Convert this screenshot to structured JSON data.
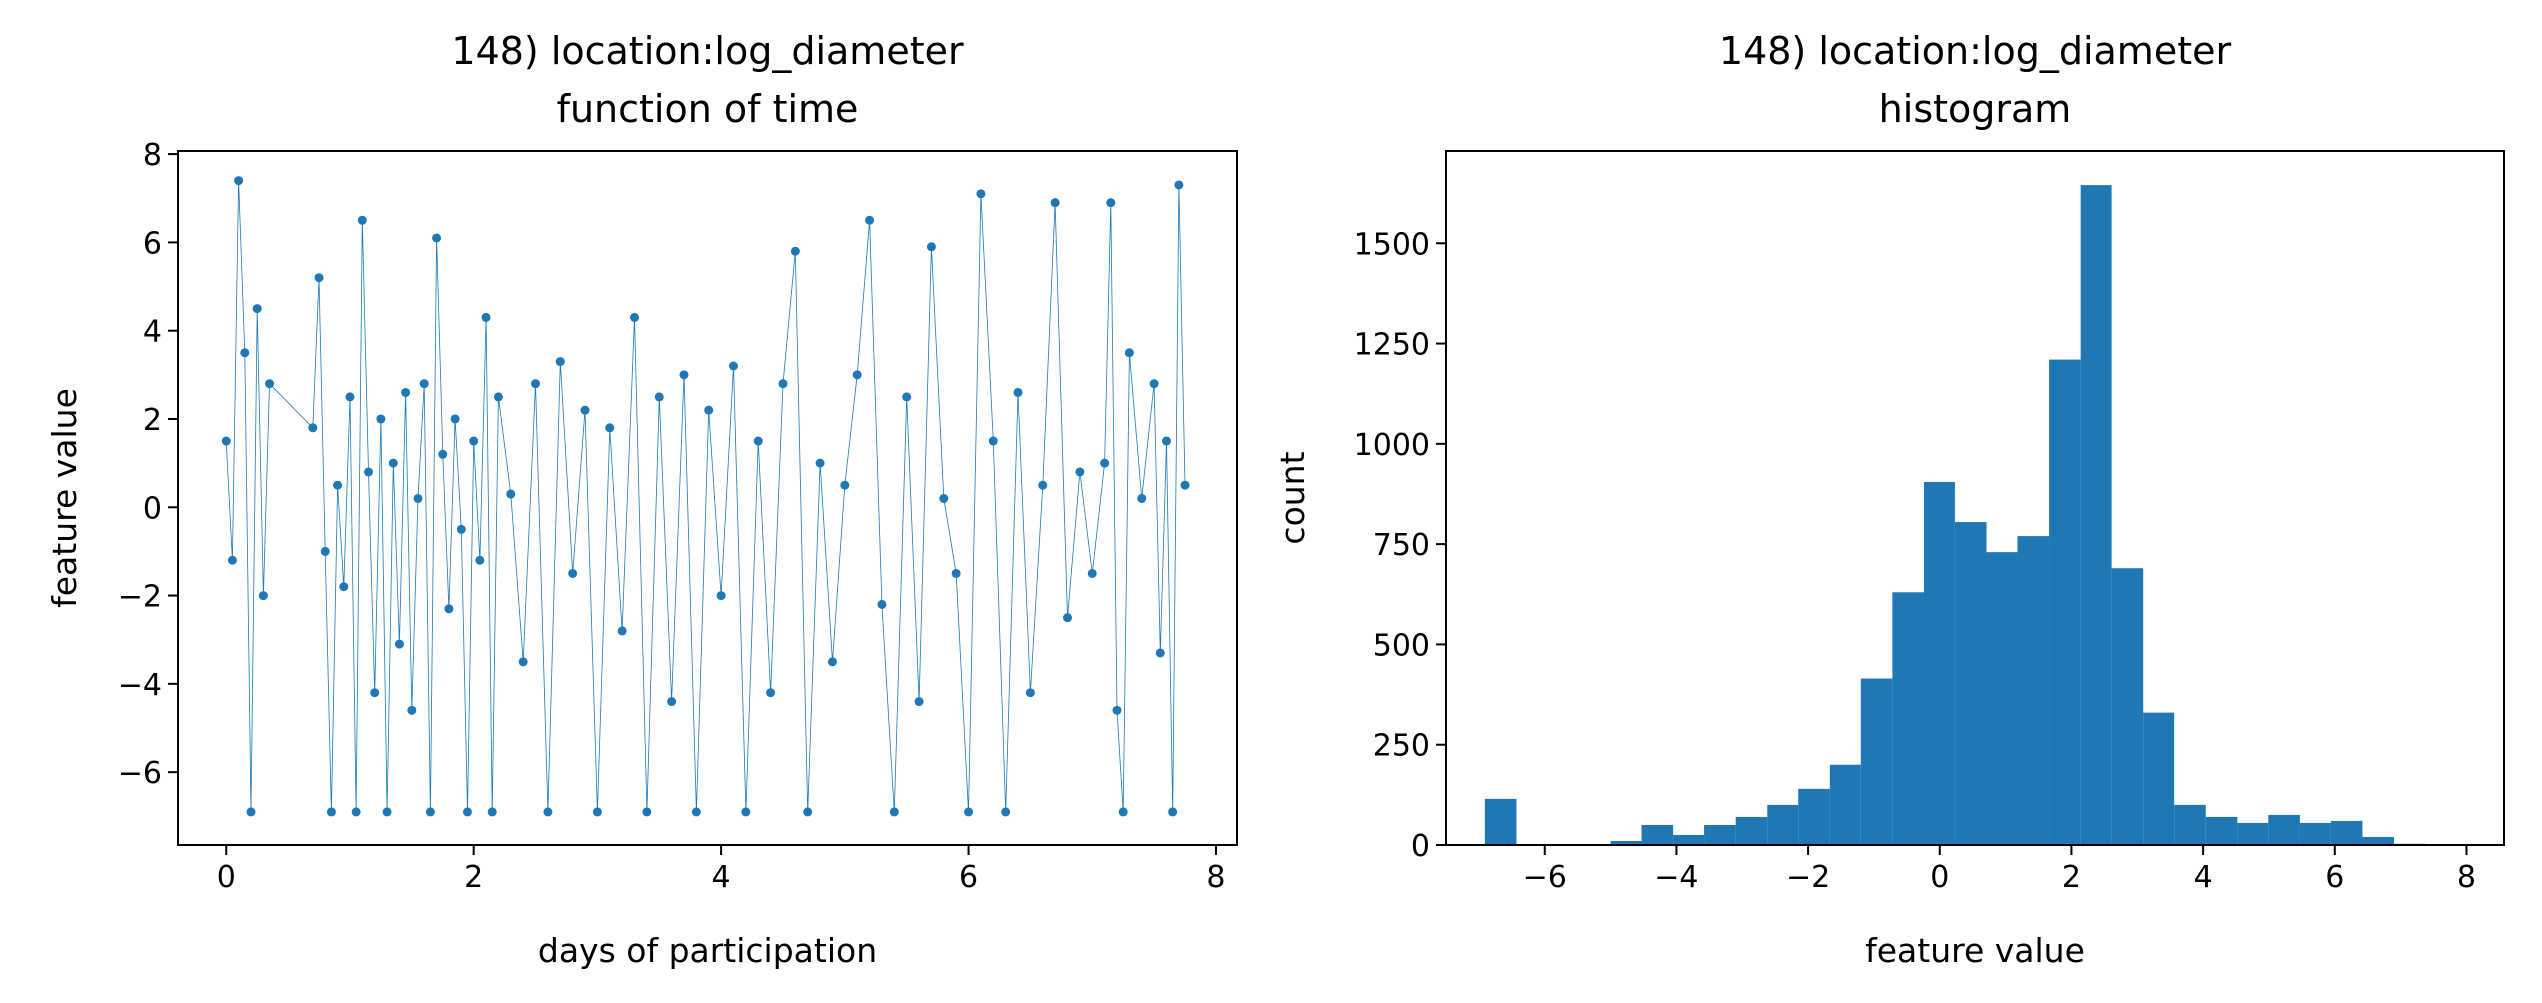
{
  "chart_data": [
    {
      "type": "line",
      "title": "148) location:log_diameter",
      "subtitle": "function of time",
      "xlabel": "days of participation",
      "ylabel": "feature value",
      "color": "#1f77b4",
      "x": [
        0.0,
        0.05,
        0.1,
        0.15,
        0.2,
        0.25,
        0.3,
        0.35,
        0.7,
        0.75,
        0.8,
        0.85,
        0.9,
        0.95,
        1.0,
        1.05,
        1.1,
        1.15,
        1.2,
        1.25,
        1.3,
        1.35,
        1.4,
        1.45,
        1.5,
        1.55,
        1.6,
        1.65,
        1.7,
        1.75,
        1.8,
        1.85,
        1.9,
        1.95,
        2.0,
        2.05,
        2.1,
        2.15,
        2.2,
        2.3,
        2.4,
        2.5,
        2.6,
        2.7,
        2.8,
        2.9,
        3.0,
        3.1,
        3.2,
        3.3,
        3.4,
        3.5,
        3.6,
        3.7,
        3.8,
        3.9,
        4.0,
        4.1,
        4.2,
        4.3,
        4.4,
        4.5,
        4.6,
        4.7,
        4.8,
        4.9,
        5.0,
        5.1,
        5.2,
        5.3,
        5.4,
        5.5,
        5.6,
        5.7,
        5.8,
        5.9,
        6.0,
        6.1,
        6.2,
        6.3,
        6.4,
        6.5,
        6.6,
        6.7,
        6.8,
        6.9,
        7.0,
        7.1,
        7.15,
        7.2,
        7.25,
        7.3,
        7.4,
        7.5,
        7.55,
        7.6,
        7.65,
        7.7,
        7.75
      ],
      "values": [
        1.5,
        -1.2,
        7.4,
        3.5,
        -6.9,
        4.5,
        -2.0,
        2.8,
        1.8,
        5.2,
        -1.0,
        -6.9,
        0.5,
        -1.8,
        2.5,
        -6.9,
        6.5,
        0.8,
        -4.2,
        2.0,
        -6.9,
        1.0,
        -3.1,
        2.6,
        -4.6,
        0.2,
        2.8,
        -6.9,
        6.1,
        1.2,
        -2.3,
        2.0,
        -0.5,
        -6.9,
        1.5,
        -1.2,
        4.3,
        -6.9,
        2.5,
        0.3,
        -3.5,
        2.8,
        -6.9,
        3.3,
        -1.5,
        2.2,
        -6.9,
        1.8,
        -2.8,
        4.3,
        -6.9,
        2.5,
        -4.4,
        3.0,
        -6.9,
        2.2,
        -2.0,
        3.2,
        -6.9,
        1.5,
        -4.2,
        2.8,
        5.8,
        -6.9,
        1.0,
        -3.5,
        0.5,
        3.0,
        6.5,
        -2.2,
        -6.9,
        2.5,
        -4.4,
        5.9,
        0.2,
        -1.5,
        -6.9,
        7.1,
        1.5,
        -6.9,
        2.6,
        -4.2,
        0.5,
        6.9,
        -2.5,
        0.8,
        -1.5,
        1.0,
        6.9,
        -4.6,
        -6.9,
        3.5,
        0.2,
        2.8,
        -3.3,
        1.5,
        -6.9,
        7.3,
        0.5
      ],
      "xlim": [
        -0.39,
        8.17
      ],
      "ylim": [
        -7.65,
        8.07
      ],
      "xticks": [
        0,
        2,
        4,
        6,
        8
      ],
      "yticks": [
        {
          "value": -6,
          "label": "−6"
        },
        {
          "value": -4,
          "label": "−4"
        },
        {
          "value": -2,
          "label": "−2"
        },
        0,
        2,
        4,
        6,
        8
      ]
    },
    {
      "type": "histogram",
      "title": "148) location:log_diameter",
      "subtitle": "histogram",
      "xlabel": "feature value",
      "ylabel": "count",
      "color": "#1f77b4",
      "bins": [
        -6.91,
        -6.43,
        -5.96,
        -5.48,
        -5.0,
        -4.53,
        -4.05,
        -3.58,
        -3.1,
        -2.62,
        -2.15,
        -1.67,
        -1.2,
        -0.72,
        -0.24,
        0.23,
        0.71,
        1.18,
        1.66,
        2.14,
        2.61,
        3.09,
        3.56,
        4.04,
        4.52,
        4.99,
        5.47,
        5.94,
        6.42,
        6.9,
        7.37
      ],
      "values": [
        115,
        0,
        0,
        0,
        10,
        50,
        25,
        50,
        70,
        100,
        140,
        200,
        415,
        630,
        905,
        805,
        730,
        770,
        1210,
        1645,
        690,
        330,
        100,
        70,
        55,
        75,
        55,
        60,
        20,
        3
      ],
      "xlim": [
        -7.5,
        8.57
      ],
      "ylim": [
        0,
        1730
      ],
      "xticks": [
        {
          "value": -6,
          "label": "−6"
        },
        {
          "value": -4,
          "label": "−4"
        },
        {
          "value": -2,
          "label": "−2"
        },
        0,
        2,
        4,
        6,
        8
      ],
      "yticks": [
        0,
        250,
        500,
        750,
        1000,
        1250,
        1500
      ]
    }
  ]
}
